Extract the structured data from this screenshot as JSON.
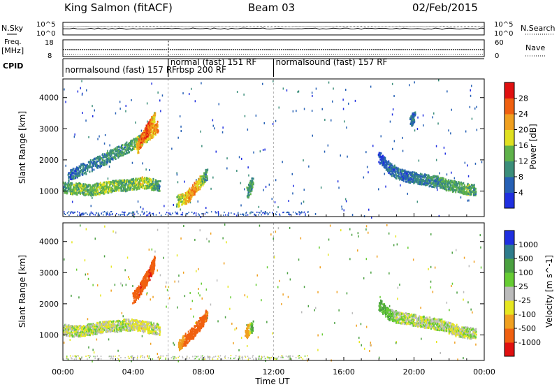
{
  "header": {
    "station": "King Salmon (fitACF)",
    "beam": "Beam 03",
    "date": "02/Feb/2015"
  },
  "top_panels": {
    "noise_label_left": "N.Sky",
    "noise_label_right": "N.Search",
    "noise_left_ticks": [
      "10^5",
      "10^0"
    ],
    "noise_right_ticks": [
      "10^5",
      "10^0"
    ],
    "freq_label": "Freq.",
    "freq_unit": "[MHz]",
    "freq_ticks": [
      "18",
      "8"
    ],
    "nave_label": "Nave",
    "nave_ticks": [
      "60",
      "0"
    ],
    "cpid_label": "CPID",
    "cpid_segments": [
      {
        "start_h": 0,
        "end_h": 6.0,
        "text": "normalsound (fast) 157 RF"
      },
      {
        "start_h": 6.0,
        "end_h": 7.0,
        "text": "rbsp 200 RF"
      },
      {
        "start_h": 6.0,
        "end_h": 12.0,
        "text": "normal (fast) 151 RF"
      },
      {
        "start_h": 12.0,
        "end_h": 24.0,
        "text": "normalsound (fast) 157 RF"
      }
    ]
  },
  "x_axis": {
    "label": "Time UT",
    "ticks": [
      "00:00",
      "04:00",
      "08:00",
      "12:00",
      "16:00",
      "20:00",
      "00:00"
    ]
  },
  "chart_data": [
    {
      "type": "heatmap",
      "title": "Power",
      "xlabel": "Time UT",
      "ylabel": "Slant Range [km]",
      "xlim": [
        0,
        24
      ],
      "ylim": [
        180,
        4600
      ],
      "yticks": [
        "1000",
        "2000",
        "3000",
        "4000"
      ],
      "colorbar": {
        "label": "Power [dB]",
        "ticks": [
          "4",
          "8",
          "12",
          "16",
          "20",
          "24",
          "28"
        ],
        "range": [
          0,
          32
        ],
        "colors": [
          "#1f2fe0",
          "#2660b5",
          "#3b8e7a",
          "#5fb24a",
          "#e0e020",
          "#f0a020",
          "#f06010",
          "#e01010"
        ]
      },
      "series": [
        {
          "t": [
            0.0,
            0.5,
            1.0,
            1.5,
            2.0,
            2.5,
            3.0,
            3.5,
            4.0,
            4.5,
            5.0,
            5.5
          ],
          "range": [
            1150,
            1100,
            1100,
            1050,
            1100,
            1150,
            1200,
            1200,
            1250,
            1300,
            1250,
            1200
          ],
          "power": [
            10,
            14,
            14,
            12,
            14,
            16,
            14,
            12,
            14,
            18,
            14,
            10
          ]
        },
        {
          "t": [
            0.3,
            1.0,
            1.8,
            2.5,
            3.2,
            3.9,
            4.5,
            5.0,
            5.4
          ],
          "range": [
            1500,
            1700,
            1900,
            2100,
            2300,
            2500,
            2700,
            2900,
            3100
          ],
          "power": [
            6,
            8,
            8,
            10,
            10,
            12,
            16,
            20,
            24
          ]
        },
        {
          "t": [
            4.2,
            4.5,
            4.8,
            5.0,
            5.2
          ],
          "range": [
            2400,
            2700,
            3000,
            3200,
            3400
          ],
          "power": [
            22,
            26,
            28,
            24,
            18
          ]
        },
        {
          "t": [
            6.5,
            7.0,
            7.4,
            7.8,
            8.2
          ],
          "range": [
            700,
            800,
            1050,
            1300,
            1600
          ],
          "power": [
            14,
            20,
            24,
            18,
            10
          ]
        },
        {
          "t": [
            10.5,
            10.8
          ],
          "range": [
            1000,
            1300
          ],
          "power": [
            12,
            10
          ]
        },
        {
          "t": [
            18.0,
            18.5,
            19.0,
            19.5,
            20.0,
            20.5,
            21.0,
            21.5,
            22.0,
            22.5,
            23.0,
            23.5
          ],
          "range": [
            2100,
            1800,
            1600,
            1500,
            1450,
            1400,
            1350,
            1300,
            1200,
            1150,
            1100,
            1050
          ],
          "power": [
            4,
            6,
            8,
            6,
            8,
            8,
            10,
            10,
            12,
            12,
            14,
            10
          ]
        },
        {
          "t": [
            19.8,
            20.0
          ],
          "range": [
            3300,
            3400
          ],
          "power": [
            8,
            6
          ]
        }
      ]
    },
    {
      "type": "heatmap",
      "title": "Velocity",
      "xlabel": "Time UT",
      "ylabel": "Slant Range [km]",
      "xlim": [
        0,
        24
      ],
      "ylim": [
        180,
        4600
      ],
      "yticks": [
        "1000",
        "2000",
        "3000",
        "4000"
      ],
      "colorbar": {
        "label": "Velocity [m s^-1]",
        "ticks": [
          "1000",
          "500",
          "100",
          "25",
          "-25",
          "-100",
          "-500",
          "-1000"
        ],
        "colors": [
          "#1f2fe0",
          "#2e7c8c",
          "#4aa040",
          "#66cc33",
          "#bbbbbb",
          "#e6e620",
          "#f0a020",
          "#f06010",
          "#e01010"
        ]
      },
      "series": [
        {
          "t": [
            0.0,
            0.5,
            1.0,
            1.5,
            2.0,
            2.5,
            3.0,
            3.5,
            4.0,
            4.5,
            5.0,
            5.5
          ],
          "range": [
            1200,
            1150,
            1150,
            1200,
            1250,
            1300,
            1300,
            1350,
            1350,
            1300,
            1250,
            1200
          ],
          "velocity": [
            0,
            10,
            -10,
            0,
            0,
            -20,
            0,
            10,
            -30,
            -50,
            -20,
            0
          ]
        },
        {
          "t": [
            4.0,
            4.4,
            4.7,
            5.0,
            5.2
          ],
          "range": [
            2200,
            2500,
            2800,
            3100,
            3400
          ],
          "velocity": [
            -800,
            -1000,
            -900,
            -1000,
            -700
          ]
        },
        {
          "t": [
            6.6,
            7.0,
            7.4,
            7.8,
            8.2
          ],
          "range": [
            700,
            900,
            1100,
            1400,
            1700
          ],
          "velocity": [
            -300,
            -600,
            -900,
            -800,
            -500
          ]
        },
        {
          "t": [
            10.4,
            10.8
          ],
          "range": [
            1100,
            1300
          ],
          "velocity": [
            -400,
            200
          ]
        },
        {
          "t": [
            18.0,
            18.5,
            19.0,
            19.5,
            20.0,
            20.5,
            21.0,
            21.5,
            22.0,
            22.5,
            23.0,
            23.5
          ],
          "range": [
            2000,
            1700,
            1600,
            1550,
            1500,
            1450,
            1400,
            1350,
            1250,
            1150,
            1100,
            1050
          ],
          "velocity": [
            150,
            80,
            20,
            0,
            0,
            -10,
            0,
            10,
            0,
            -20,
            0,
            0
          ]
        }
      ]
    }
  ]
}
